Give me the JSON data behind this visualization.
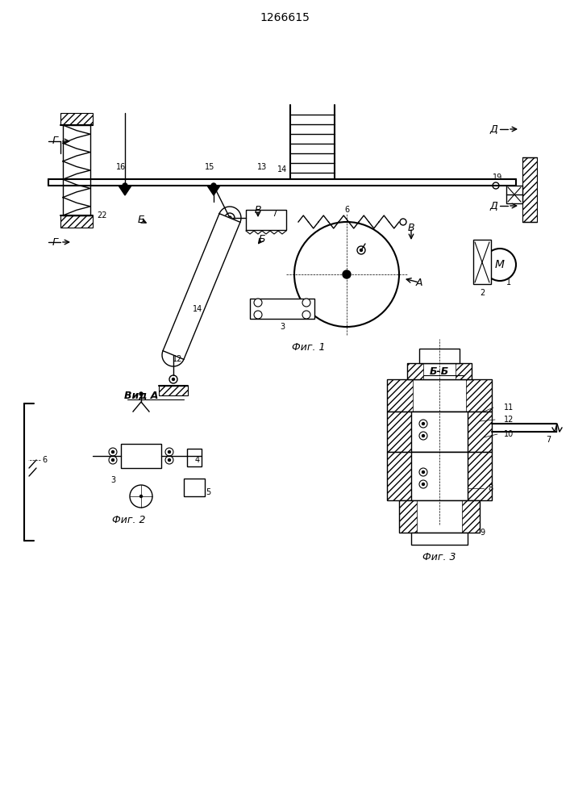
{
  "title": "1266615",
  "bg_color": "#ffffff",
  "line_color": "#000000",
  "fig1_label": "Фиг. 1",
  "fig2_label": "Фиг. 2",
  "fig3_label": "Фиг. 3",
  "vid_a_label": "Вид А",
  "bb_label": "Б-Б"
}
